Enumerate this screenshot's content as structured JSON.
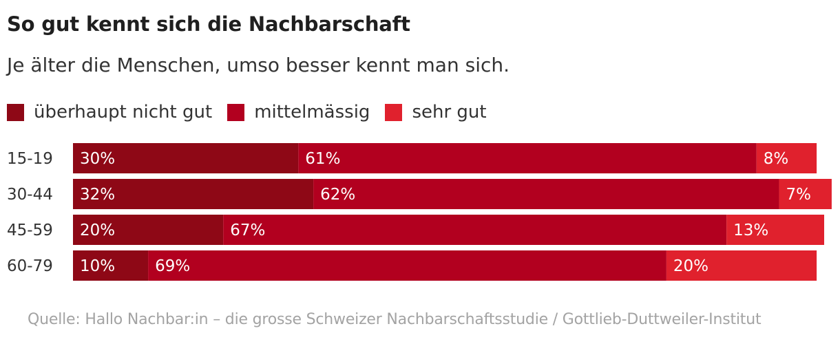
{
  "title": "So gut kennt sich die Nachbarschaft",
  "subtitle": "Je älter die Menschen, umso besser kennt man sich.",
  "source": "Quelle: Hallo Nachbar:in – die grosse Schweizer Nachbarschaftsstudie / Gottlieb-Duttweiler-Institut",
  "colors": {
    "ueberhaupt_nicht_gut": "#8e0816",
    "mittelmaessig": "#b2001f",
    "sehr_gut": "#e0212d",
    "label_text": "#ffffff",
    "category_text": "#333333"
  },
  "legend": [
    {
      "label": "überhaupt nicht gut",
      "color": "#8e0816"
    },
    {
      "label": "mittelmässig",
      "color": "#b2001f"
    },
    {
      "label": "sehr gut",
      "color": "#e0212d"
    }
  ],
  "chart_data": {
    "type": "bar",
    "orientation": "horizontal",
    "stacked": true,
    "title": "So gut kennt sich die Nachbarschaft",
    "subtitle": "Je älter die Menschen, umso besser kennt man sich.",
    "categories": [
      "15-19",
      "30-44",
      "45-59",
      "60-79"
    ],
    "series": [
      {
        "name": "überhaupt nicht gut",
        "color": "#8e0816",
        "values": [
          30,
          32,
          20,
          10
        ],
        "labels": [
          "30%",
          "32%",
          "20%",
          "10%"
        ]
      },
      {
        "name": "mittelmässig",
        "color": "#b2001f",
        "values": [
          61,
          62,
          67,
          69
        ],
        "labels": [
          "61%",
          "62%",
          "67%",
          "69%"
        ]
      },
      {
        "name": "sehr gut",
        "color": "#e0212d",
        "values": [
          8,
          7,
          13,
          20
        ],
        "labels": [
          "8%",
          "7%",
          "13%",
          "20%"
        ]
      }
    ],
    "xlim": [
      0,
      100
    ],
    "unit": "%",
    "grid": false,
    "legend_position": "top-left"
  }
}
